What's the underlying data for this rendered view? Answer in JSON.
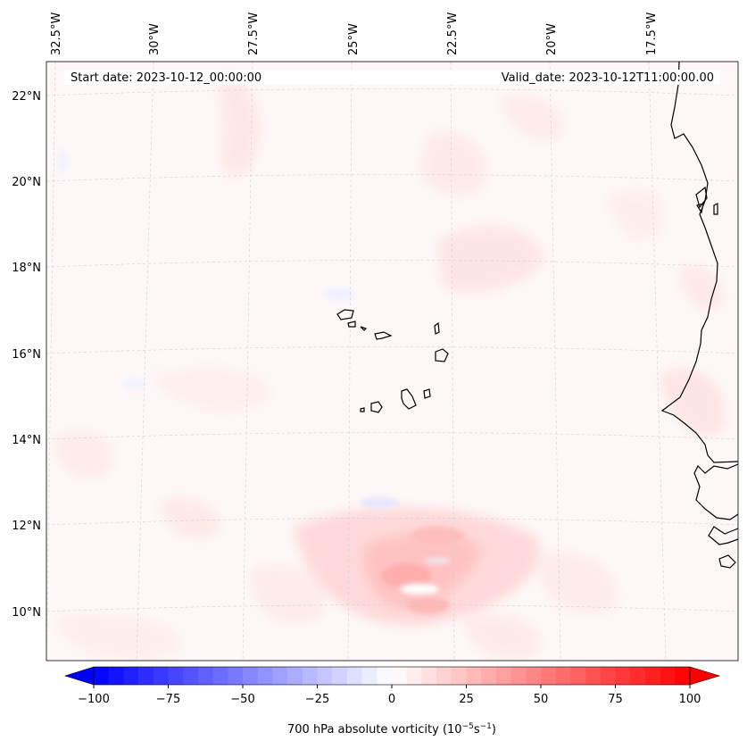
{
  "map": {
    "start_date_text": "Start date: 2023-10-12_00:00:00",
    "valid_date_text": "Valid_date: 2023-10-12T11:00:00.00",
    "lon_labels": [
      "32.5°W",
      "30°W",
      "27.5°W",
      "25°W",
      "22.5°W",
      "20°W",
      "17.5°W"
    ],
    "lat_labels": [
      "22°N",
      "20°N",
      "18°N",
      "16°N",
      "14°N",
      "12°N",
      "10°N"
    ],
    "land_color": "#fcf5f5",
    "ocean_color": "#fdf7f7",
    "coast_color": "#000000"
  },
  "colorbar": {
    "label_main": "700 hPa absolute vorticity (10",
    "label_exp1": "−5",
    "label_mid": "s",
    "label_exp2": "−1",
    "label_close": ")",
    "ticks": [
      "−100",
      "−75",
      "−50",
      "−25",
      "0",
      "25",
      "50",
      "75",
      "100"
    ],
    "min": -100,
    "max": 100,
    "low_color": "#0000ff",
    "high_color": "#ff0000",
    "mid_color": "#ffffff"
  }
}
